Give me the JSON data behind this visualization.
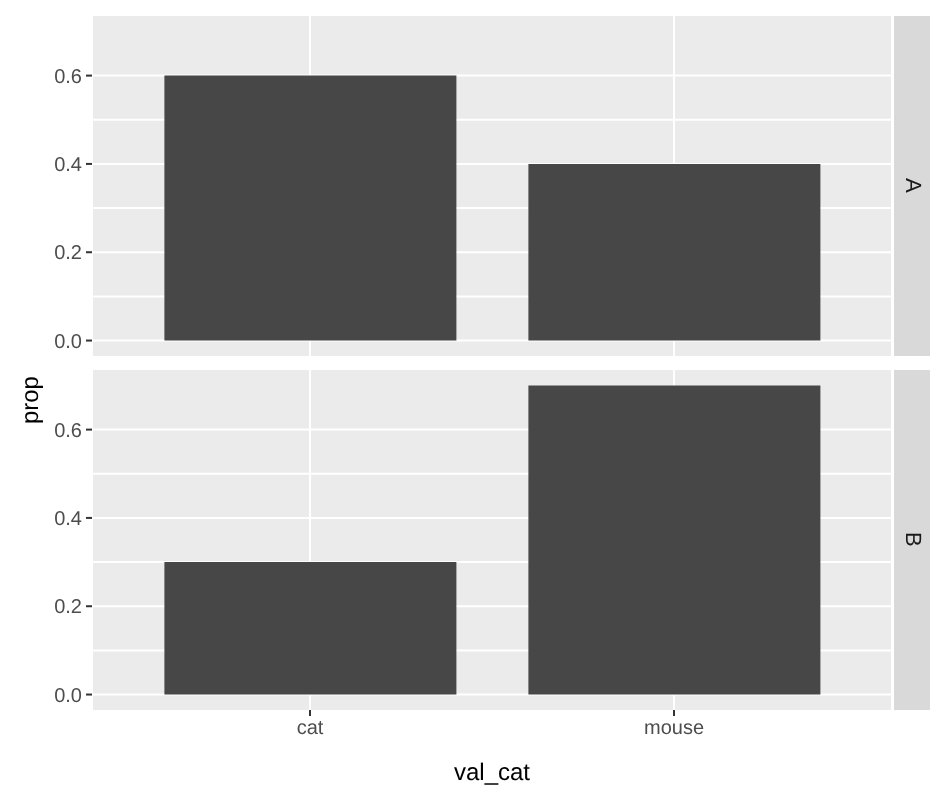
{
  "chart_data": [
    {
      "type": "bar",
      "title": "A",
      "ylabel": "prop",
      "categories": [
        null,
        null
      ],
      "values": [
        0.6,
        0.4
      ],
      "color": "#474747",
      "ylim": [
        -0.035,
        0.735
      ],
      "yticks": [
        {
          "value": 0,
          "label": "0.0"
        },
        {
          "value": 0.2,
          "label": "0.2"
        },
        {
          "value": 0.4,
          "label": "0.4"
        },
        {
          "value": 0.6,
          "label": "0.6"
        }
      ],
      "grid": true,
      "tick_labels": "y"
    },
    {
      "type": "bar",
      "title": "B",
      "xlabel": "val_cat",
      "categories": [
        "cat",
        "mouse"
      ],
      "values": [
        0.3,
        0.7
      ],
      "color": "#474747",
      "ylim": [
        -0.035,
        0.735
      ],
      "yticks": [
        {
          "value": 0,
          "label": "0.0"
        },
        {
          "value": 0.2,
          "label": "0.2"
        },
        {
          "value": 0.4,
          "label": "0.4"
        },
        {
          "value": 0.6,
          "label": "0.6"
        }
      ],
      "grid": true
    }
  ]
}
